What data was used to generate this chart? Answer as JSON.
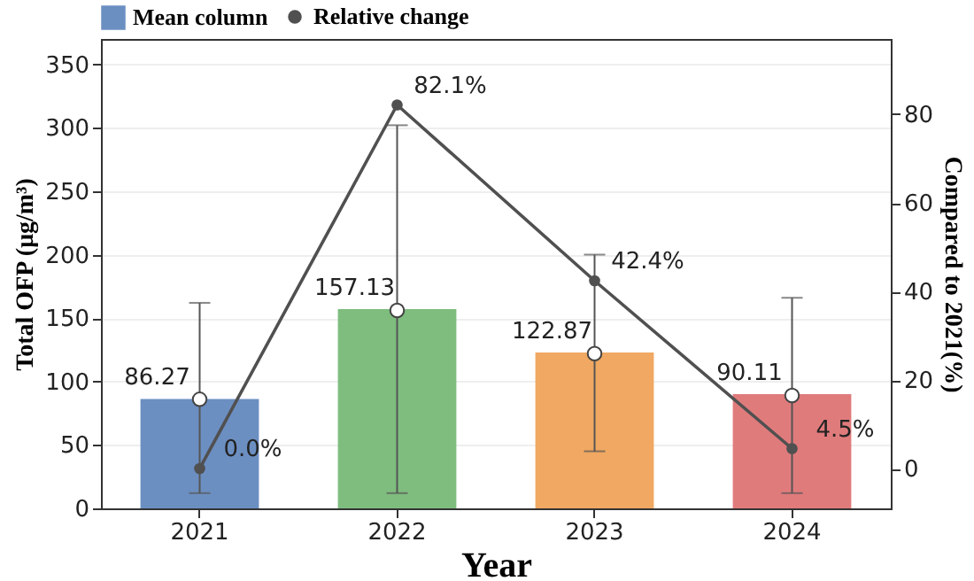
{
  "chart_data": {
    "type": "bar",
    "xlabel": "Year",
    "ylabel": "Total OFP (μg/m³)",
    "y2label": "Compared to 2021(%)",
    "categories": [
      "2021",
      "2022",
      "2023",
      "2024"
    ],
    "series": [
      {
        "name": "Mean column",
        "colors": [
          "#6c8fc2",
          "#7fbd7f",
          "#f0a862",
          "#e07b7c"
        ],
        "values": [
          86.27,
          157.13,
          122.87,
          90.11
        ],
        "errors": [
          [
            12,
            162
          ],
          [
            12,
            302
          ],
          [
            45,
            200
          ],
          [
            12,
            166
          ]
        ],
        "value_labels": [
          "86.27",
          "157.13",
          "122.87",
          "90.11"
        ]
      },
      {
        "type": "line",
        "name": "Relative change",
        "color": "#505050",
        "values": [
          0,
          82.1,
          42.4,
          4.5
        ],
        "axis": "y2",
        "marker": "circle",
        "value_labels": [
          "0.0%",
          "82.1%",
          "42.4%",
          "4.5%"
        ]
      },
      {
        "type": "scatter",
        "color": "#ffffff",
        "marker": "circle",
        "values": [
          86,
          156,
          122,
          89
        ]
      }
    ],
    "ylim": [
      0,
      370
    ],
    "yticks": [
      0,
      50,
      100,
      150,
      200,
      250,
      300,
      350
    ],
    "y2lim": [
      -9,
      97
    ],
    "y2ticks": [
      0,
      20,
      40,
      60,
      80
    ],
    "grid": "y",
    "legend": "top"
  }
}
